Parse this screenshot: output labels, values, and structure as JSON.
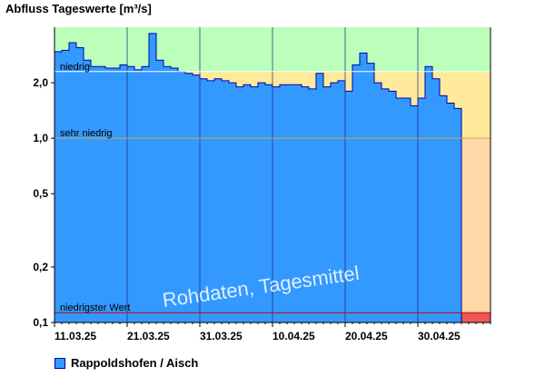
{
  "chart_data": {
    "type": "area",
    "title": "Abfluss Tageswerte [m³/s]",
    "yscale": "log",
    "ylim": [
      0.1,
      4.0
    ],
    "yticks": [
      {
        "value": 2.0,
        "label": "2,0"
      },
      {
        "value": 1.0,
        "label": "1,0"
      },
      {
        "value": 0.5,
        "label": "0,5"
      },
      {
        "value": 0.2,
        "label": "0,2"
      },
      {
        "value": 0.1,
        "label": "0,1"
      }
    ],
    "xlim": [
      "2025-03-11",
      "2025-05-10"
    ],
    "xticks": [
      {
        "date": "2025-03-11",
        "label": "11.03.25"
      },
      {
        "date": "2025-03-21",
        "label": "21.03.25"
      },
      {
        "date": "2025-03-31",
        "label": "31.03.25"
      },
      {
        "date": "2025-04-10",
        "label": "10.04.25"
      },
      {
        "date": "2025-04-20",
        "label": "20.04.25"
      },
      {
        "date": "2025-04-30",
        "label": "30.04.25"
      }
    ],
    "thresholds": [
      {
        "label": "niedrig",
        "value": 2.3,
        "line_color": "#ffffff"
      },
      {
        "label": "sehr niedrig",
        "value": 1.0,
        "line_color": "#ccaa44"
      },
      {
        "label": "niedrigster Wert",
        "value": 0.113,
        "line_color": "#cc0000"
      }
    ],
    "zones": [
      {
        "from": 2.3,
        "to": 4.0,
        "color": "#bbffbb"
      },
      {
        "from": 1.0,
        "to": 2.3,
        "color": "#ffe99a"
      },
      {
        "from": 0.113,
        "to": 1.0,
        "color": "#ffd8a8"
      },
      {
        "from": 0.1,
        "to": 0.113,
        "color": "#ee5555"
      }
    ],
    "series": [
      {
        "name": "Rappoldshofen / Aisch",
        "color": "#3399ff",
        "start_date": "2025-03-11",
        "values": [
          2.95,
          3.0,
          3.3,
          3.1,
          2.65,
          2.45,
          2.45,
          2.4,
          2.4,
          2.5,
          2.45,
          2.35,
          2.45,
          3.7,
          2.65,
          2.45,
          2.4,
          2.3,
          2.25,
          2.2,
          2.1,
          2.05,
          2.1,
          2.05,
          2.0,
          1.9,
          1.95,
          1.9,
          2.0,
          1.95,
          1.9,
          1.95,
          1.95,
          1.95,
          1.9,
          1.85,
          2.25,
          1.9,
          2.0,
          2.05,
          1.8,
          2.5,
          2.9,
          2.55,
          2.0,
          1.85,
          1.8,
          1.65,
          1.65,
          1.5,
          1.65,
          2.45,
          2.1,
          1.7,
          1.55,
          1.45
        ]
      }
    ],
    "annotation": "Rohdaten, Tagesmittel"
  }
}
